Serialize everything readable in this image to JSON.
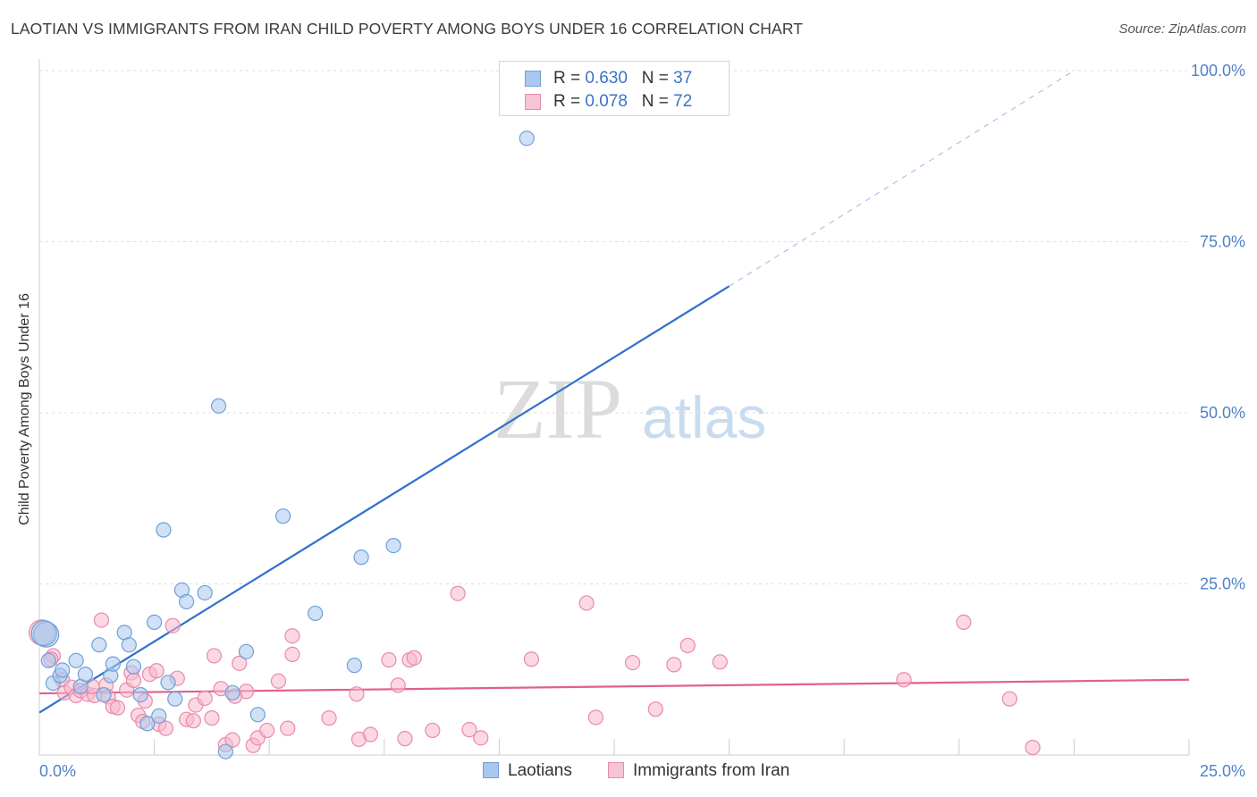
{
  "header": {
    "title": "LAOTIAN VS IMMIGRANTS FROM IRAN CHILD POVERTY AMONG BOYS UNDER 16 CORRELATION CHART",
    "source": "Source: ZipAtlas.com"
  },
  "watermark": {
    "zip": "ZIP",
    "atlas": "atlas"
  },
  "legend": {
    "rows": [
      {
        "r_label": "R = ",
        "r_value": "0.630",
        "n_label": "N = ",
        "n_value": "37"
      },
      {
        "r_label": "R = ",
        "r_value": "0.078",
        "n_label": "N = ",
        "n_value": "72"
      }
    ]
  },
  "colors": {
    "laotian_fill": "#a9c8ef",
    "laotian_stroke": "#6f9fd8",
    "laotian_line": "#2f6fcc",
    "iran_fill": "#f7b8cc",
    "iran_stroke": "#e88aa8",
    "iran_line": "#e0608a",
    "tick_label": "#4f82c8",
    "grid": "#dddddd"
  },
  "chart_data": {
    "type": "scatter",
    "title": "LAOTIAN VS IMMIGRANTS FROM IRAN CHILD POVERTY AMONG BOYS UNDER 16 CORRELATION CHART",
    "xlabel": "",
    "ylabel": "Child Poverty Among Boys Under 16",
    "xlim": [
      0,
      25
    ],
    "ylim": [
      0,
      100
    ],
    "x_tick_labels": [
      "0.0%",
      "25.0%"
    ],
    "y_ticks": [
      25,
      50,
      75,
      100
    ],
    "y_tick_labels": [
      "25.0%",
      "50.0%",
      "75.0%",
      "100.0%"
    ],
    "grid": true,
    "legend_position": "top-center",
    "series": [
      {
        "name": "Laotians",
        "points": [
          [
            0.15,
            17.6
          ],
          [
            0.2,
            13.8
          ],
          [
            0.3,
            10.5
          ],
          [
            0.45,
            11.6
          ],
          [
            0.5,
            12.4
          ],
          [
            0.8,
            13.8
          ],
          [
            0.9,
            10.0
          ],
          [
            1.0,
            11.8
          ],
          [
            1.3,
            16.1
          ],
          [
            1.4,
            8.8
          ],
          [
            1.55,
            11.6
          ],
          [
            1.6,
            13.3
          ],
          [
            1.85,
            17.9
          ],
          [
            1.95,
            16.1
          ],
          [
            2.05,
            12.9
          ],
          [
            2.2,
            8.8
          ],
          [
            2.35,
            4.6
          ],
          [
            2.5,
            19.4
          ],
          [
            2.6,
            5.7
          ],
          [
            2.7,
            32.9
          ],
          [
            2.8,
            10.6
          ],
          [
            2.95,
            8.2
          ],
          [
            3.1,
            24.1
          ],
          [
            3.2,
            22.4
          ],
          [
            3.6,
            23.7
          ],
          [
            3.9,
            51.0
          ],
          [
            4.05,
            0.5
          ],
          [
            4.2,
            9.1
          ],
          [
            4.5,
            15.1
          ],
          [
            4.75,
            5.9
          ],
          [
            5.3,
            34.9
          ],
          [
            6.0,
            20.7
          ],
          [
            6.85,
            13.1
          ],
          [
            7.0,
            28.9
          ],
          [
            7.7,
            30.6
          ],
          [
            10.6,
            90.1
          ],
          [
            0.1,
            17.8
          ]
        ]
      },
      {
        "name": "Immigrants from Iran",
        "points": [
          [
            0.05,
            17.9
          ],
          [
            0.3,
            14.5
          ],
          [
            0.5,
            11.0
          ],
          [
            0.55,
            9.1
          ],
          [
            0.7,
            9.9
          ],
          [
            0.8,
            8.7
          ],
          [
            0.9,
            9.4
          ],
          [
            1.05,
            8.9
          ],
          [
            1.2,
            8.7
          ],
          [
            1.35,
            19.7
          ],
          [
            1.45,
            10.2
          ],
          [
            1.5,
            8.5
          ],
          [
            1.6,
            7.1
          ],
          [
            1.7,
            6.9
          ],
          [
            1.9,
            9.5
          ],
          [
            2.0,
            12.0
          ],
          [
            2.05,
            10.9
          ],
          [
            2.15,
            5.8
          ],
          [
            2.25,
            4.9
          ],
          [
            2.4,
            11.8
          ],
          [
            2.55,
            12.3
          ],
          [
            2.6,
            4.5
          ],
          [
            2.75,
            3.9
          ],
          [
            2.9,
            18.9
          ],
          [
            3.0,
            11.2
          ],
          [
            3.2,
            5.2
          ],
          [
            3.4,
            7.3
          ],
          [
            3.6,
            8.3
          ],
          [
            3.75,
            5.4
          ],
          [
            3.8,
            14.5
          ],
          [
            3.95,
            9.7
          ],
          [
            4.05,
            1.5
          ],
          [
            4.2,
            2.2
          ],
          [
            4.35,
            13.4
          ],
          [
            4.5,
            9.3
          ],
          [
            4.65,
            1.4
          ],
          [
            4.75,
            2.5
          ],
          [
            4.95,
            3.6
          ],
          [
            5.2,
            10.8
          ],
          [
            5.4,
            3.9
          ],
          [
            5.5,
            14.7
          ],
          [
            5.5,
            17.4
          ],
          [
            6.3,
            5.4
          ],
          [
            6.9,
            8.9
          ],
          [
            6.95,
            2.3
          ],
          [
            7.2,
            3.0
          ],
          [
            7.6,
            13.9
          ],
          [
            7.8,
            10.2
          ],
          [
            7.95,
            2.4
          ],
          [
            8.05,
            13.9
          ],
          [
            8.15,
            14.2
          ],
          [
            8.55,
            3.6
          ],
          [
            9.1,
            23.6
          ],
          [
            9.35,
            3.7
          ],
          [
            9.6,
            2.5
          ],
          [
            10.7,
            14.0
          ],
          [
            11.9,
            22.2
          ],
          [
            12.1,
            5.5
          ],
          [
            12.9,
            13.5
          ],
          [
            13.4,
            6.7
          ],
          [
            13.8,
            13.2
          ],
          [
            14.1,
            16.0
          ],
          [
            14.8,
            13.6
          ],
          [
            18.8,
            11.0
          ],
          [
            20.1,
            19.4
          ],
          [
            21.1,
            8.2
          ],
          [
            21.6,
            1.1
          ],
          [
            0.25,
            14.0
          ],
          [
            1.15,
            10.0
          ],
          [
            2.3,
            7.9
          ],
          [
            3.35,
            5.0
          ],
          [
            4.25,
            8.6
          ]
        ]
      }
    ],
    "trend_lines": [
      {
        "series": "Laotians",
        "solid_from": [
          0,
          6.2
        ],
        "solid_to": [
          15,
          68.5
        ],
        "dashed_to": [
          22.5,
          100
        ]
      },
      {
        "series": "Immigrants from Iran",
        "from": [
          0,
          9.0
        ],
        "to": [
          25,
          11.0
        ]
      }
    ]
  }
}
